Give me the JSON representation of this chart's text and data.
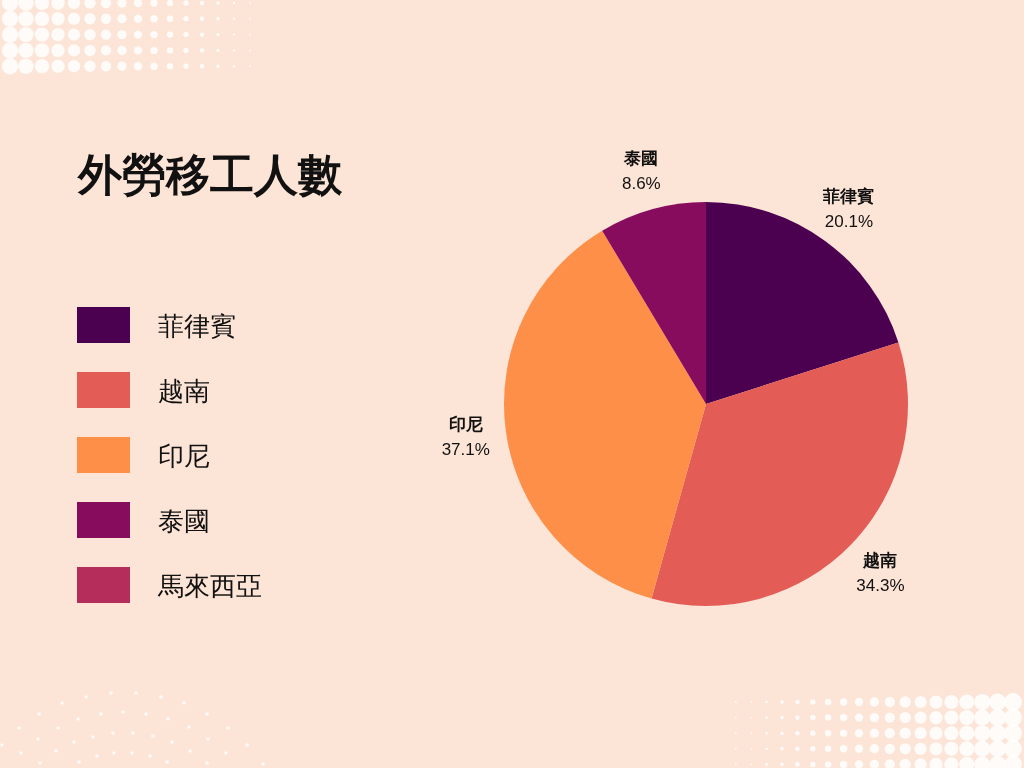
{
  "chart_data": {
    "type": "pie",
    "title": "外勞移工人數",
    "categories": [
      "菲律賓",
      "越南",
      "印尼",
      "泰國",
      "馬來西亞"
    ],
    "values": [
      20.1,
      34.3,
      37.1,
      8.6,
      0
    ],
    "colors": [
      "#4b0150",
      "#e35d56",
      "#fd8f49",
      "#870c5d",
      "#b52d5a"
    ],
    "value_labels": [
      "20.1%",
      "34.3%",
      "37.1%",
      "8.6%",
      null
    ],
    "legend": "left"
  }
}
